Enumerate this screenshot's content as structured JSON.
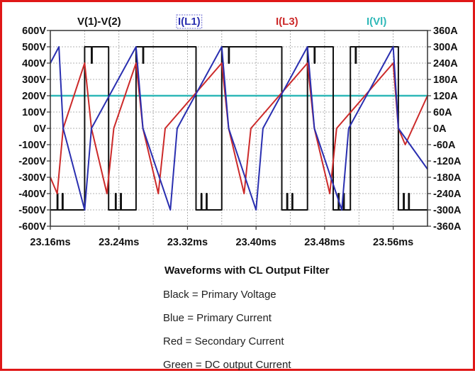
{
  "chart_data": {
    "type": "line",
    "title": "",
    "legend": [
      {
        "label": "V(1)-V(2)",
        "color": "#111111"
      },
      {
        "label": "I(L1)",
        "color": "#2a2fb0"
      },
      {
        "label": "I(L3)",
        "color": "#cc2a2a"
      },
      {
        "label": "I(Vl)",
        "color": "#2fb8b8"
      }
    ],
    "legend_placement": "top",
    "x_ticks": [
      "23.16ms",
      "23.24ms",
      "23.32ms",
      "23.40ms",
      "23.48ms",
      "23.56ms"
    ],
    "x_range_ms": [
      23.16,
      23.6
    ],
    "y_left_ticks": [
      "600V",
      "500V",
      "400V",
      "300V",
      "200V",
      "100V",
      "0V",
      "-100V",
      "-200V",
      "-300V",
      "-400V",
      "-500V",
      "-600V"
    ],
    "y_left_range_V": [
      -600,
      600
    ],
    "y_right_ticks": [
      "360A",
      "300A",
      "240A",
      "180A",
      "120A",
      "60A",
      "0A",
      "-60A",
      "-120A",
      "-180A",
      "-240A",
      "-300A",
      "-360A"
    ],
    "y_right_range_A": [
      -360,
      360
    ],
    "grid": true,
    "series": [
      {
        "name": "V(1)-V(2)",
        "axis": "left",
        "unit": "V",
        "color": "#111111",
        "points_ms_V": [
          [
            23.16,
            -500
          ],
          [
            23.168,
            -500
          ],
          [
            23.168,
            -400
          ],
          [
            23.1687,
            -400
          ],
          [
            23.1687,
            -500
          ],
          [
            23.174,
            -500
          ],
          [
            23.174,
            -400
          ],
          [
            23.1747,
            -400
          ],
          [
            23.1747,
            -500
          ],
          [
            23.2,
            -500
          ],
          [
            23.2,
            500
          ],
          [
            23.208,
            500
          ],
          [
            23.208,
            400
          ],
          [
            23.2087,
            400
          ],
          [
            23.2087,
            500
          ],
          [
            23.228,
            500
          ],
          [
            23.228,
            -500
          ],
          [
            23.236,
            -500
          ],
          [
            23.236,
            -400
          ],
          [
            23.2367,
            -400
          ],
          [
            23.2367,
            -500
          ],
          [
            23.242,
            -500
          ],
          [
            23.242,
            -400
          ],
          [
            23.2427,
            -400
          ],
          [
            23.2427,
            -500
          ],
          [
            23.26,
            -500
          ],
          [
            23.26,
            500
          ],
          [
            23.268,
            500
          ],
          [
            23.268,
            400
          ],
          [
            23.2687,
            400
          ],
          [
            23.2687,
            500
          ],
          [
            23.33,
            500
          ],
          [
            23.33,
            -500
          ],
          [
            23.336,
            -500
          ],
          [
            23.336,
            -400
          ],
          [
            23.3367,
            -400
          ],
          [
            23.3367,
            -500
          ],
          [
            23.342,
            -500
          ],
          [
            23.342,
            -400
          ],
          [
            23.3427,
            -400
          ],
          [
            23.3427,
            -500
          ],
          [
            23.36,
            -500
          ],
          [
            23.36,
            500
          ],
          [
            23.368,
            500
          ],
          [
            23.368,
            400
          ],
          [
            23.3687,
            400
          ],
          [
            23.3687,
            500
          ],
          [
            23.43,
            500
          ],
          [
            23.43,
            -500
          ],
          [
            23.436,
            -500
          ],
          [
            23.436,
            -400
          ],
          [
            23.4367,
            -400
          ],
          [
            23.4367,
            -500
          ],
          [
            23.442,
            -500
          ],
          [
            23.442,
            -400
          ],
          [
            23.4427,
            -400
          ],
          [
            23.4427,
            -500
          ],
          [
            23.46,
            -500
          ],
          [
            23.46,
            500
          ],
          [
            23.468,
            500
          ],
          [
            23.468,
            400
          ],
          [
            23.4687,
            400
          ],
          [
            23.4687,
            500
          ],
          [
            23.49,
            500
          ],
          [
            23.49,
            -500
          ],
          [
            23.496,
            -500
          ],
          [
            23.496,
            -400
          ],
          [
            23.4967,
            -400
          ],
          [
            23.4967,
            -500
          ],
          [
            23.502,
            -500
          ],
          [
            23.502,
            -400
          ],
          [
            23.5027,
            -400
          ],
          [
            23.5027,
            -500
          ],
          [
            23.51,
            -500
          ],
          [
            23.51,
            500
          ],
          [
            23.516,
            500
          ],
          [
            23.516,
            400
          ],
          [
            23.5167,
            400
          ],
          [
            23.5167,
            500
          ],
          [
            23.566,
            500
          ],
          [
            23.566,
            -500
          ],
          [
            23.572,
            -500
          ],
          [
            23.572,
            -400
          ],
          [
            23.5727,
            -400
          ],
          [
            23.5727,
            -500
          ],
          [
            23.578,
            -500
          ],
          [
            23.578,
            -400
          ],
          [
            23.5787,
            -400
          ],
          [
            23.5787,
            -500
          ],
          [
            23.6,
            -500
          ]
        ]
      },
      {
        "name": "I(L1)",
        "axis": "right",
        "unit": "A",
        "color": "#2a2fb0",
        "points_ms_A": [
          [
            23.16,
            240
          ],
          [
            23.17,
            300
          ],
          [
            23.175,
            0
          ],
          [
            23.2,
            -300
          ],
          [
            23.208,
            0
          ],
          [
            23.26,
            300
          ],
          [
            23.268,
            0
          ],
          [
            23.3,
            -300
          ],
          [
            23.308,
            0
          ],
          [
            23.36,
            300
          ],
          [
            23.368,
            0
          ],
          [
            23.4,
            -300
          ],
          [
            23.408,
            0
          ],
          [
            23.46,
            300
          ],
          [
            23.468,
            0
          ],
          [
            23.5,
            -300
          ],
          [
            23.508,
            0
          ],
          [
            23.56,
            300
          ],
          [
            23.566,
            0
          ],
          [
            23.6,
            -150
          ]
        ]
      },
      {
        "name": "I(L3)",
        "axis": "right",
        "unit": "A",
        "color": "#cc2a2a",
        "points_ms_A": [
          [
            23.16,
            -180
          ],
          [
            23.168,
            -240
          ],
          [
            23.175,
            0
          ],
          [
            23.2,
            240
          ],
          [
            23.208,
            0
          ],
          [
            23.226,
            -240
          ],
          [
            23.234,
            0
          ],
          [
            23.26,
            240
          ],
          [
            23.268,
            0
          ],
          [
            23.286,
            -240
          ],
          [
            23.294,
            0
          ],
          [
            23.36,
            240
          ],
          [
            23.368,
            0
          ],
          [
            23.386,
            -240
          ],
          [
            23.394,
            0
          ],
          [
            23.46,
            240
          ],
          [
            23.468,
            0
          ],
          [
            23.486,
            -240
          ],
          [
            23.494,
            0
          ],
          [
            23.56,
            240
          ],
          [
            23.566,
            0
          ],
          [
            23.574,
            -60
          ],
          [
            23.6,
            120
          ]
        ]
      },
      {
        "name": "I(Vl)",
        "axis": "right",
        "unit": "A",
        "color": "#2fb8b8",
        "points_ms_A": [
          [
            23.16,
            120
          ],
          [
            23.6,
            120
          ]
        ]
      }
    ]
  },
  "caption": {
    "title": "Waveforms with CL Output Filter",
    "lines": [
      "Black = Primary Voltage",
      "Blue = Primary Current",
      "Red = Secondary Current",
      "Green = DC output Current"
    ]
  }
}
